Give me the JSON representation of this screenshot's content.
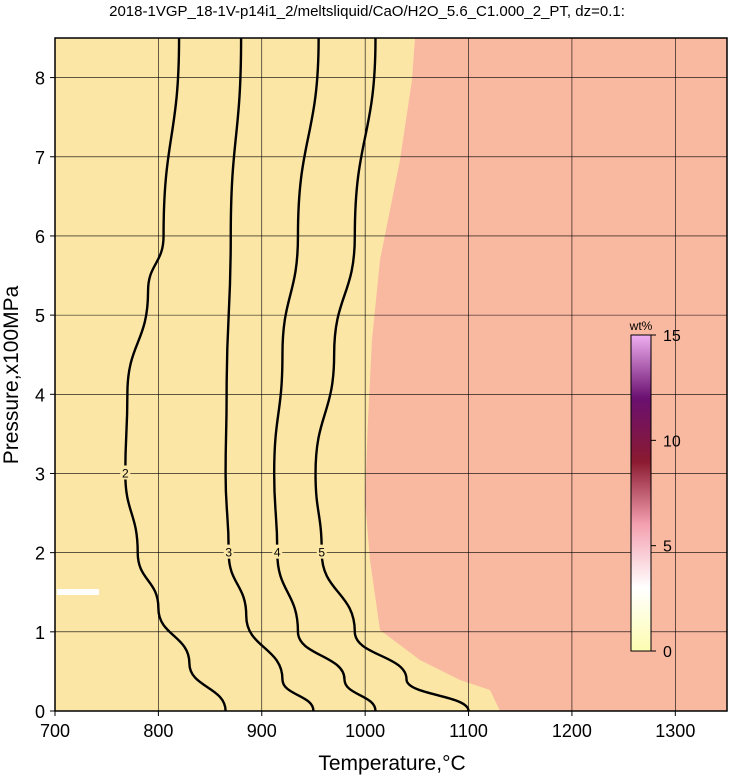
{
  "chart_data": {
    "type": "contour",
    "title": "2018-1VGP_18-1V-p14i1_2/meltsliquid/CaO/H2O_5.6_C1.000_2_PT, dz=0.1:",
    "x_label": "Temperature,°C",
    "y_label": "Pressure,x100MPa",
    "xlim": [
      700,
      1350
    ],
    "ylim": [
      0,
      8.5
    ],
    "xticks": [
      700,
      800,
      900,
      1000,
      1100,
      1200,
      1300
    ],
    "yticks": [
      0,
      1,
      2,
      3,
      4,
      5,
      6,
      7,
      8
    ],
    "grid": true,
    "contours": [
      {
        "level": 2,
        "x": [
          820,
          805,
          790,
          770,
          768,
          780,
          800,
          830,
          865
        ],
        "y": [
          8.5,
          6,
          5.3,
          4,
          3,
          2,
          1.3,
          0.6,
          0
        ]
      },
      {
        "level": 3,
        "x": [
          880,
          870,
          866,
          865,
          868,
          885,
          920,
          950
        ],
        "y": [
          8.5,
          6,
          4,
          3,
          2,
          1.2,
          0.4,
          0
        ]
      },
      {
        "level": 4,
        "x": [
          955,
          935,
          920,
          912,
          915,
          935,
          980,
          1010
        ],
        "y": [
          8.5,
          6,
          4.5,
          3,
          2,
          1,
          0.4,
          0
        ]
      },
      {
        "level": 5,
        "x": [
          1010,
          990,
          970,
          952,
          958,
          990,
          1040,
          1100
        ],
        "y": [
          8.5,
          6,
          4.5,
          3,
          2,
          1,
          0.4,
          0
        ]
      }
    ],
    "colorbar": {
      "label": "wt%",
      "lim": [
        0,
        15
      ],
      "ticks": [
        0,
        5,
        10,
        15
      ],
      "colors": [
        "#fdfcb0",
        "#ffffff",
        "#f4a0b0",
        "#8a1a30",
        "#6a1070",
        "#f0b0f0"
      ]
    }
  }
}
